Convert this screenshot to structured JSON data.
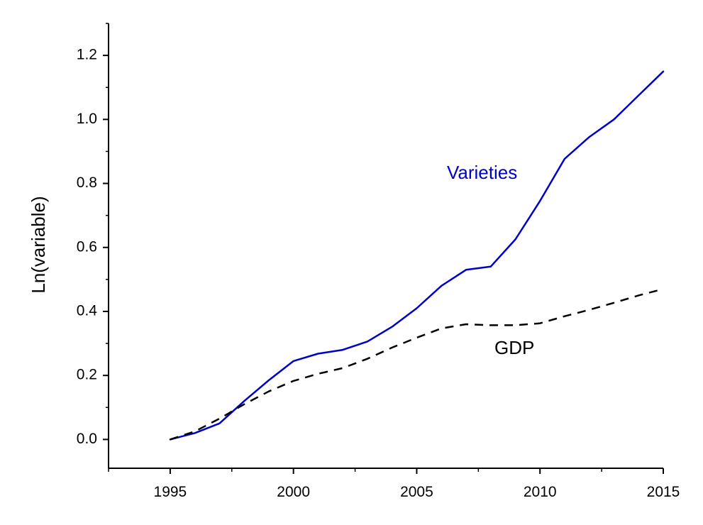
{
  "chart_data": {
    "type": "line",
    "title": "",
    "xlabel": "",
    "ylabel": "Ln(variable)",
    "xlim": [
      1992.5,
      2015
    ],
    "ylim": [
      -0.09,
      1.3
    ],
    "x_ticks": [
      1995,
      2000,
      2005,
      2010,
      2015
    ],
    "y_ticks": [
      0.0,
      0.2,
      0.4,
      0.6,
      0.8,
      1.0,
      1.2
    ],
    "x_tick_labels": [
      "1995",
      "2000",
      "2005",
      "2010",
      "2015"
    ],
    "y_tick_labels": [
      "0.0",
      "0.2",
      "0.4",
      "0.6",
      "0.8",
      "1.0",
      "1.2"
    ],
    "grid": false,
    "x": [
      1995,
      1996,
      1997,
      1998,
      1999,
      2000,
      2001,
      2002,
      2003,
      2004,
      2005,
      2006,
      2007,
      2008,
      2009,
      2010,
      2011,
      2012,
      2013,
      2014,
      2015
    ],
    "series": [
      {
        "name": "Varieties",
        "color": "#0000cc",
        "style": "solid",
        "values": [
          0.0,
          0.02,
          0.05,
          0.12,
          0.185,
          0.245,
          0.268,
          0.28,
          0.306,
          0.352,
          0.41,
          0.48,
          0.53,
          0.54,
          0.625,
          0.745,
          0.877,
          0.945,
          1.0,
          1.075,
          1.15
        ]
      },
      {
        "name": "GDP",
        "color": "#000000",
        "style": "dashed",
        "values": [
          0.0,
          0.025,
          0.065,
          0.11,
          0.15,
          0.183,
          0.205,
          0.223,
          0.252,
          0.287,
          0.318,
          0.347,
          0.36,
          0.357,
          0.357,
          0.363,
          0.385,
          0.405,
          0.427,
          0.45,
          0.47
        ]
      }
    ]
  }
}
